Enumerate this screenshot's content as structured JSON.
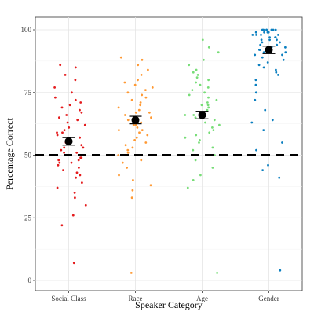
{
  "chart_data": {
    "type": "scatter",
    "xlabel": "Speaker Category",
    "ylabel": "Percentage Correct",
    "ylim": [
      0,
      100
    ],
    "yticks": [
      0,
      25,
      50,
      75,
      100
    ],
    "categories": [
      "Social Class",
      "Race",
      "Age",
      "Gender"
    ],
    "grid": true,
    "chance_line": 50,
    "series": [
      {
        "category": "Social Class",
        "color": "#e41a1c",
        "mean": 55.5,
        "ci": [
          54.0,
          57.0
        ],
        "points": [
          7,
          22,
          26,
          30,
          33,
          35,
          37,
          39,
          41,
          42,
          43,
          44,
          45,
          46,
          47,
          47,
          48,
          48,
          49,
          49,
          50,
          50,
          51,
          51,
          52,
          53,
          53,
          54,
          55,
          56,
          57,
          58,
          59,
          59,
          60,
          61,
          62,
          63,
          64,
          65,
          66,
          67,
          68,
          69,
          70,
          71,
          72,
          73,
          75,
          77,
          80,
          82,
          85,
          86
        ]
      },
      {
        "category": "Race",
        "color": "#ff9933",
        "mean": 64.0,
        "ci": [
          62.5,
          65.5
        ],
        "points": [
          3,
          33,
          36,
          38,
          40,
          42,
          45,
          47,
          48,
          50,
          51,
          52,
          53,
          54,
          55,
          56,
          57,
          58,
          59,
          60,
          60,
          61,
          62,
          62,
          63,
          64,
          64,
          65,
          66,
          67,
          67,
          68,
          69,
          70,
          71,
          72,
          73,
          74,
          75,
          76,
          77,
          78,
          79,
          80,
          82,
          84,
          86,
          88,
          89
        ]
      },
      {
        "category": "Age",
        "color": "#77dd77",
        "mean": 66.0,
        "ci": [
          64.5,
          67.5
        ],
        "points": [
          3,
          37,
          40,
          42,
          45,
          48,
          50,
          52,
          53,
          55,
          56,
          57,
          58,
          59,
          60,
          61,
          62,
          63,
          64,
          65,
          66,
          66,
          67,
          68,
          69,
          70,
          70,
          71,
          72,
          73,
          74,
          75,
          76,
          77,
          78,
          79,
          80,
          81,
          82,
          83,
          84,
          86,
          88,
          91,
          93,
          96
        ]
      },
      {
        "category": "Gender",
        "color": "#0a7fc0",
        "mean": 92.0,
        "ci": [
          90.5,
          93.5
        ],
        "points": [
          4,
          41,
          44,
          46,
          50,
          52,
          55,
          60,
          63,
          64,
          68,
          72,
          75,
          78,
          80,
          82,
          83,
          84,
          85,
          86,
          87,
          88,
          89,
          90,
          90,
          91,
          91,
          92,
          92,
          93,
          93,
          94,
          94,
          95,
          95,
          96,
          96,
          96,
          97,
          97,
          97,
          98,
          98,
          98,
          98,
          99,
          99,
          99,
          99,
          100,
          100,
          100,
          100,
          100,
          100,
          100,
          100
        ]
      }
    ]
  }
}
